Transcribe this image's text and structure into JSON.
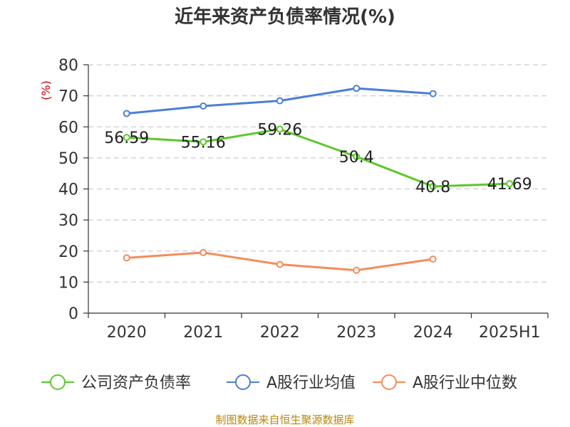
{
  "title": "近年来资产负债率情况(%)",
  "source": "制图数据来自恒生聚源数据库",
  "chart_data": {
    "type": "line",
    "title": "近年来资产负债率情况(%)",
    "ylabel": "(%)",
    "xlabel": "",
    "ylim": [
      0,
      80
    ],
    "yticks": [
      0,
      10,
      20,
      30,
      40,
      50,
      60,
      70,
      80
    ],
    "categories": [
      "2020",
      "2021",
      "2022",
      "2023",
      "2024",
      "2025H1"
    ],
    "grid": true,
    "legend_position": "bottom",
    "series": [
      {
        "name": "公司资产负债率",
        "color": "#5cc82a",
        "values": [
          56.59,
          55.16,
          59.26,
          50.4,
          40.8,
          41.69
        ],
        "labels": [
          "56.59",
          "55.16",
          "59.26",
          "50.4",
          "40.8",
          "41.69"
        ]
      },
      {
        "name": "A股行业均值",
        "color": "#4a7fd6",
        "values": [
          64.3,
          66.7,
          68.4,
          72.4,
          70.7,
          null
        ]
      },
      {
        "name": "A股行业中位数",
        "color": "#f48c5a",
        "values": [
          17.8,
          19.5,
          15.7,
          13.8,
          17.4,
          null
        ]
      }
    ]
  }
}
